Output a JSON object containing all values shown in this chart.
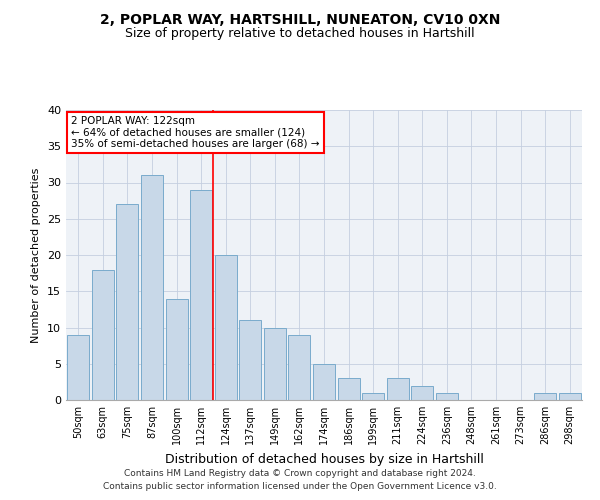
{
  "title1": "2, POPLAR WAY, HARTSHILL, NUNEATON, CV10 0XN",
  "title2": "Size of property relative to detached houses in Hartshill",
  "xlabel": "Distribution of detached houses by size in Hartshill",
  "ylabel": "Number of detached properties",
  "bar_color": "#c8d8e8",
  "bar_edge_color": "#7aabcc",
  "categories": [
    "50sqm",
    "63sqm",
    "75sqm",
    "87sqm",
    "100sqm",
    "112sqm",
    "124sqm",
    "137sqm",
    "149sqm",
    "162sqm",
    "174sqm",
    "186sqm",
    "199sqm",
    "211sqm",
    "224sqm",
    "236sqm",
    "248sqm",
    "261sqm",
    "273sqm",
    "286sqm",
    "298sqm"
  ],
  "values": [
    9,
    18,
    27,
    31,
    14,
    29,
    20,
    11,
    10,
    9,
    5,
    3,
    1,
    3,
    2,
    1,
    0,
    0,
    0,
    1,
    1
  ],
  "ylim": [
    0,
    40
  ],
  "yticks": [
    0,
    5,
    10,
    15,
    20,
    25,
    30,
    35,
    40
  ],
  "vline_x": 5.5,
  "annotation_text": "2 POPLAR WAY: 122sqm\n← 64% of detached houses are smaller (124)\n35% of semi-detached houses are larger (68) →",
  "annotation_box_color": "white",
  "annotation_box_edgecolor": "red",
  "vline_color": "red",
  "footer1": "Contains HM Land Registry data © Crown copyright and database right 2024.",
  "footer2": "Contains public sector information licensed under the Open Government Licence v3.0.",
  "bg_color": "#eef2f7",
  "grid_color": "#c5cfe0",
  "title1_fontsize": 10,
  "title2_fontsize": 9,
  "ylabel_fontsize": 8,
  "xlabel_fontsize": 9,
  "tick_fontsize": 7,
  "footer_fontsize": 6.5
}
